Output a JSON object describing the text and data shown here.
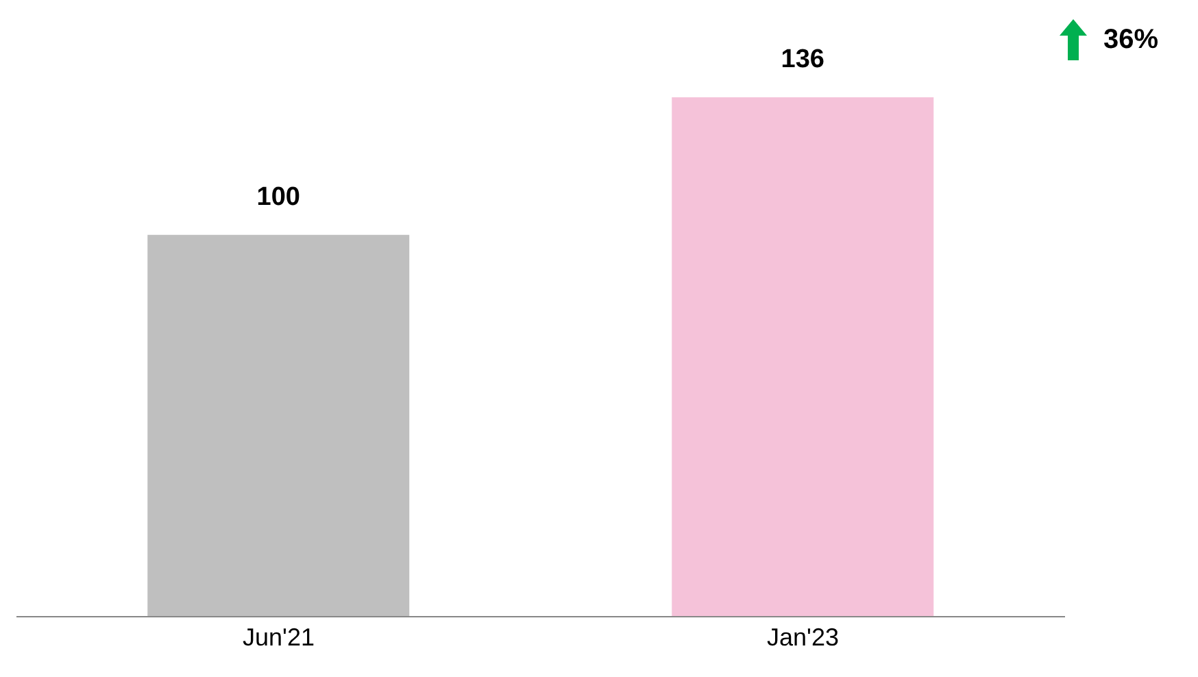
{
  "chart_data": {
    "type": "bar",
    "categories": [
      "Jun'21",
      "Jan'23"
    ],
    "values": [
      100,
      136
    ],
    "colors": [
      "#bfbfbf",
      "#f5c2d9"
    ],
    "data_labels": true,
    "annotations": [
      "36%"
    ]
  }
}
